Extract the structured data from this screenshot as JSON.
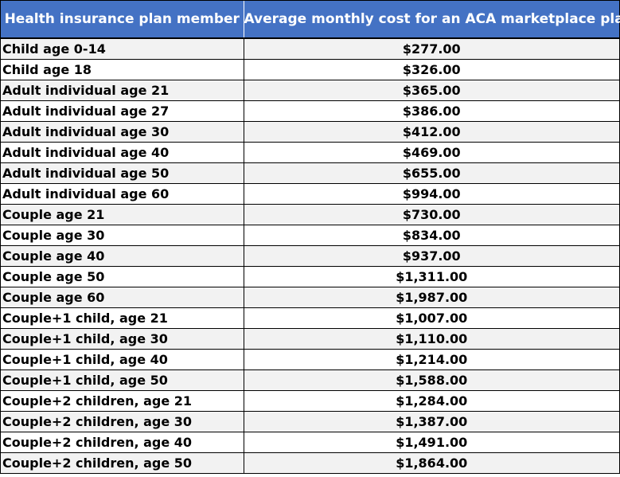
{
  "table": {
    "headers": {
      "member": "Health insurance plan member",
      "cost": "Average monthly cost for an ACA marketplace plan"
    },
    "rows": [
      {
        "member": "Child age 0-14",
        "cost": "$277.00"
      },
      {
        "member": "Child age 18",
        "cost": "$326.00"
      },
      {
        "member": "Adult individual age 21",
        "cost": "$365.00"
      },
      {
        "member": "Adult individual age 27",
        "cost": "$386.00"
      },
      {
        "member": "Adult individual age 30",
        "cost": "$412.00"
      },
      {
        "member": "Adult individual age 40",
        "cost": "$469.00"
      },
      {
        "member": "Adult individual age 50",
        "cost": "$655.00"
      },
      {
        "member": "Adult individual age 60",
        "cost": "$994.00"
      },
      {
        "member": "Couple age 21",
        "cost": "$730.00"
      },
      {
        "member": "Couple age 30",
        "cost": "$834.00"
      },
      {
        "member": "Couple age 40",
        "cost": "$937.00"
      },
      {
        "member": "Couple age 50",
        "cost": "$1,311.00"
      },
      {
        "member": "Couple age 60",
        "cost": "$1,987.00"
      },
      {
        "member": "Couple+1 child, age 21",
        "cost": "$1,007.00"
      },
      {
        "member": "Couple+1 child, age 30",
        "cost": "$1,110.00"
      },
      {
        "member": "Couple+1 child, age 40",
        "cost": "$1,214.00"
      },
      {
        "member": "Couple+1 child, age 50",
        "cost": "$1,588.00"
      },
      {
        "member": "Couple+2 children, age 21",
        "cost": "$1,284.00"
      },
      {
        "member": "Couple+2 children, age 30",
        "cost": "$1,387.00"
      },
      {
        "member": "Couple+2 children, age 40",
        "cost": "$1,491.00"
      },
      {
        "member": "Couple+2 children, age 50",
        "cost": "$1,864.00"
      }
    ]
  },
  "colors": {
    "header_background": "#4472c4",
    "header_text": "#ffffff",
    "row_shade": "#f2f2f2",
    "border": "#000000"
  }
}
